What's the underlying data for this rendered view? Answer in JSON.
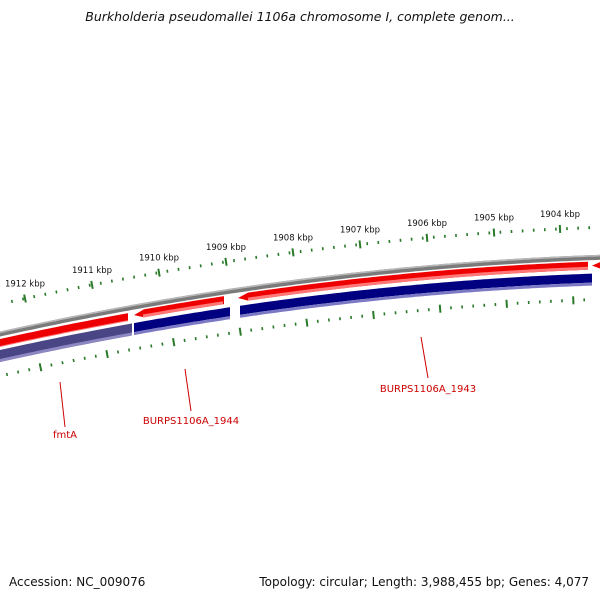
{
  "title": "Burkholderia pseudomallei 1106a chromosome I, complete genom...",
  "accession": "Accession: NC_009076",
  "summary": "Topology: circular; Length: 3,988,455 bp; Genes: 4,077",
  "ruler_labels": [
    "1904 kbp",
    "1905 kbp",
    "1906 kbp",
    "1907 kbp",
    "1908 kbp",
    "1909 kbp",
    "1910 kbp",
    "1911 kbp",
    "1912 kbp"
  ],
  "genes": [
    {
      "name": "fmtA",
      "strand": "forward"
    },
    {
      "name": "BURPS1106A_1944",
      "strand": "reverse"
    },
    {
      "name": "BURPS1106A_1943",
      "strand": "reverse"
    }
  ],
  "colors": {
    "backbone": "#7a7a7a",
    "forward_feature": "#ee0000",
    "reverse_feature": "#000080",
    "ruler_tick": "#2a7a2a",
    "label": "#cc0000"
  }
}
